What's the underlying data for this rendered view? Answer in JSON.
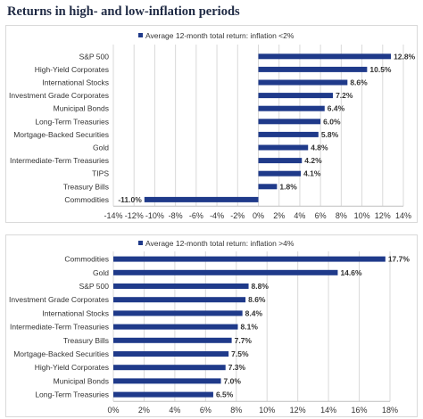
{
  "title": "Returns in high- and low-inflation periods",
  "colors": {
    "bar": "#1f3a8a",
    "grid": "#d9d9d9",
    "text": "#333333"
  },
  "chart_data": [
    {
      "type": "bar",
      "orientation": "horizontal",
      "legend": "Average 12-month total return: inflation <2%",
      "legend_position": "top",
      "grid": true,
      "categories": [
        "S&P 500",
        "High-Yield Corporates",
        "International Stocks",
        "Investment Grade Corporates",
        "Municipal Bonds",
        "Long-Term Treasuries",
        "Mortgage-Backed Securities",
        "Gold",
        "Intermediate-Term Treasuries",
        "TIPS",
        "Treasury Bills",
        "Commodities"
      ],
      "values": [
        12.8,
        10.5,
        8.6,
        7.2,
        6.4,
        6.0,
        5.8,
        4.8,
        4.2,
        4.1,
        1.8,
        -11.0
      ],
      "labels": [
        "12.8%",
        "10.5%",
        "8.6%",
        "7.2%",
        "6.4%",
        "6.0%",
        "5.8%",
        "4.8%",
        "4.2%",
        "4.1%",
        "1.8%",
        "-11.0%"
      ],
      "xlim": [
        -14,
        14
      ],
      "ticks": [
        -14,
        -12,
        -10,
        -8,
        -6,
        -4,
        -2,
        0,
        2,
        4,
        6,
        8,
        10,
        12,
        14
      ],
      "tick_labels": [
        "-14%",
        "-12%",
        "-10%",
        "-8%",
        "-6%",
        "-4%",
        "-2%",
        "0%",
        "2%",
        "4%",
        "6%",
        "8%",
        "10%",
        "12%",
        "14%"
      ]
    },
    {
      "type": "bar",
      "orientation": "horizontal",
      "legend": "Average 12-month total return: inflation >4%",
      "legend_position": "top",
      "grid": true,
      "categories": [
        "Commodities",
        "Gold",
        "S&P 500",
        "Investment Grade Corporates",
        "International Stocks",
        "Intermediate-Term Treasuries",
        "Treasury Bills",
        "Mortgage-Backed Securities",
        "High-Yield Corporates",
        "Municipal Bonds",
        "Long-Term Treasuries"
      ],
      "values": [
        17.7,
        14.6,
        8.8,
        8.6,
        8.4,
        8.1,
        7.7,
        7.5,
        7.3,
        7.0,
        6.5
      ],
      "labels": [
        "17.7%",
        "14.6%",
        "8.8%",
        "8.6%",
        "8.4%",
        "8.1%",
        "7.7%",
        "7.5%",
        "7.3%",
        "7.0%",
        "6.5%"
      ],
      "xlim": [
        0,
        18
      ],
      "ticks": [
        0,
        2,
        4,
        6,
        8,
        10,
        12,
        14,
        16,
        18
      ],
      "tick_labels": [
        "0%",
        "2%",
        "4%",
        "6%",
        "8%",
        "10%",
        "12%",
        "14%",
        "16%",
        "18%"
      ]
    }
  ]
}
